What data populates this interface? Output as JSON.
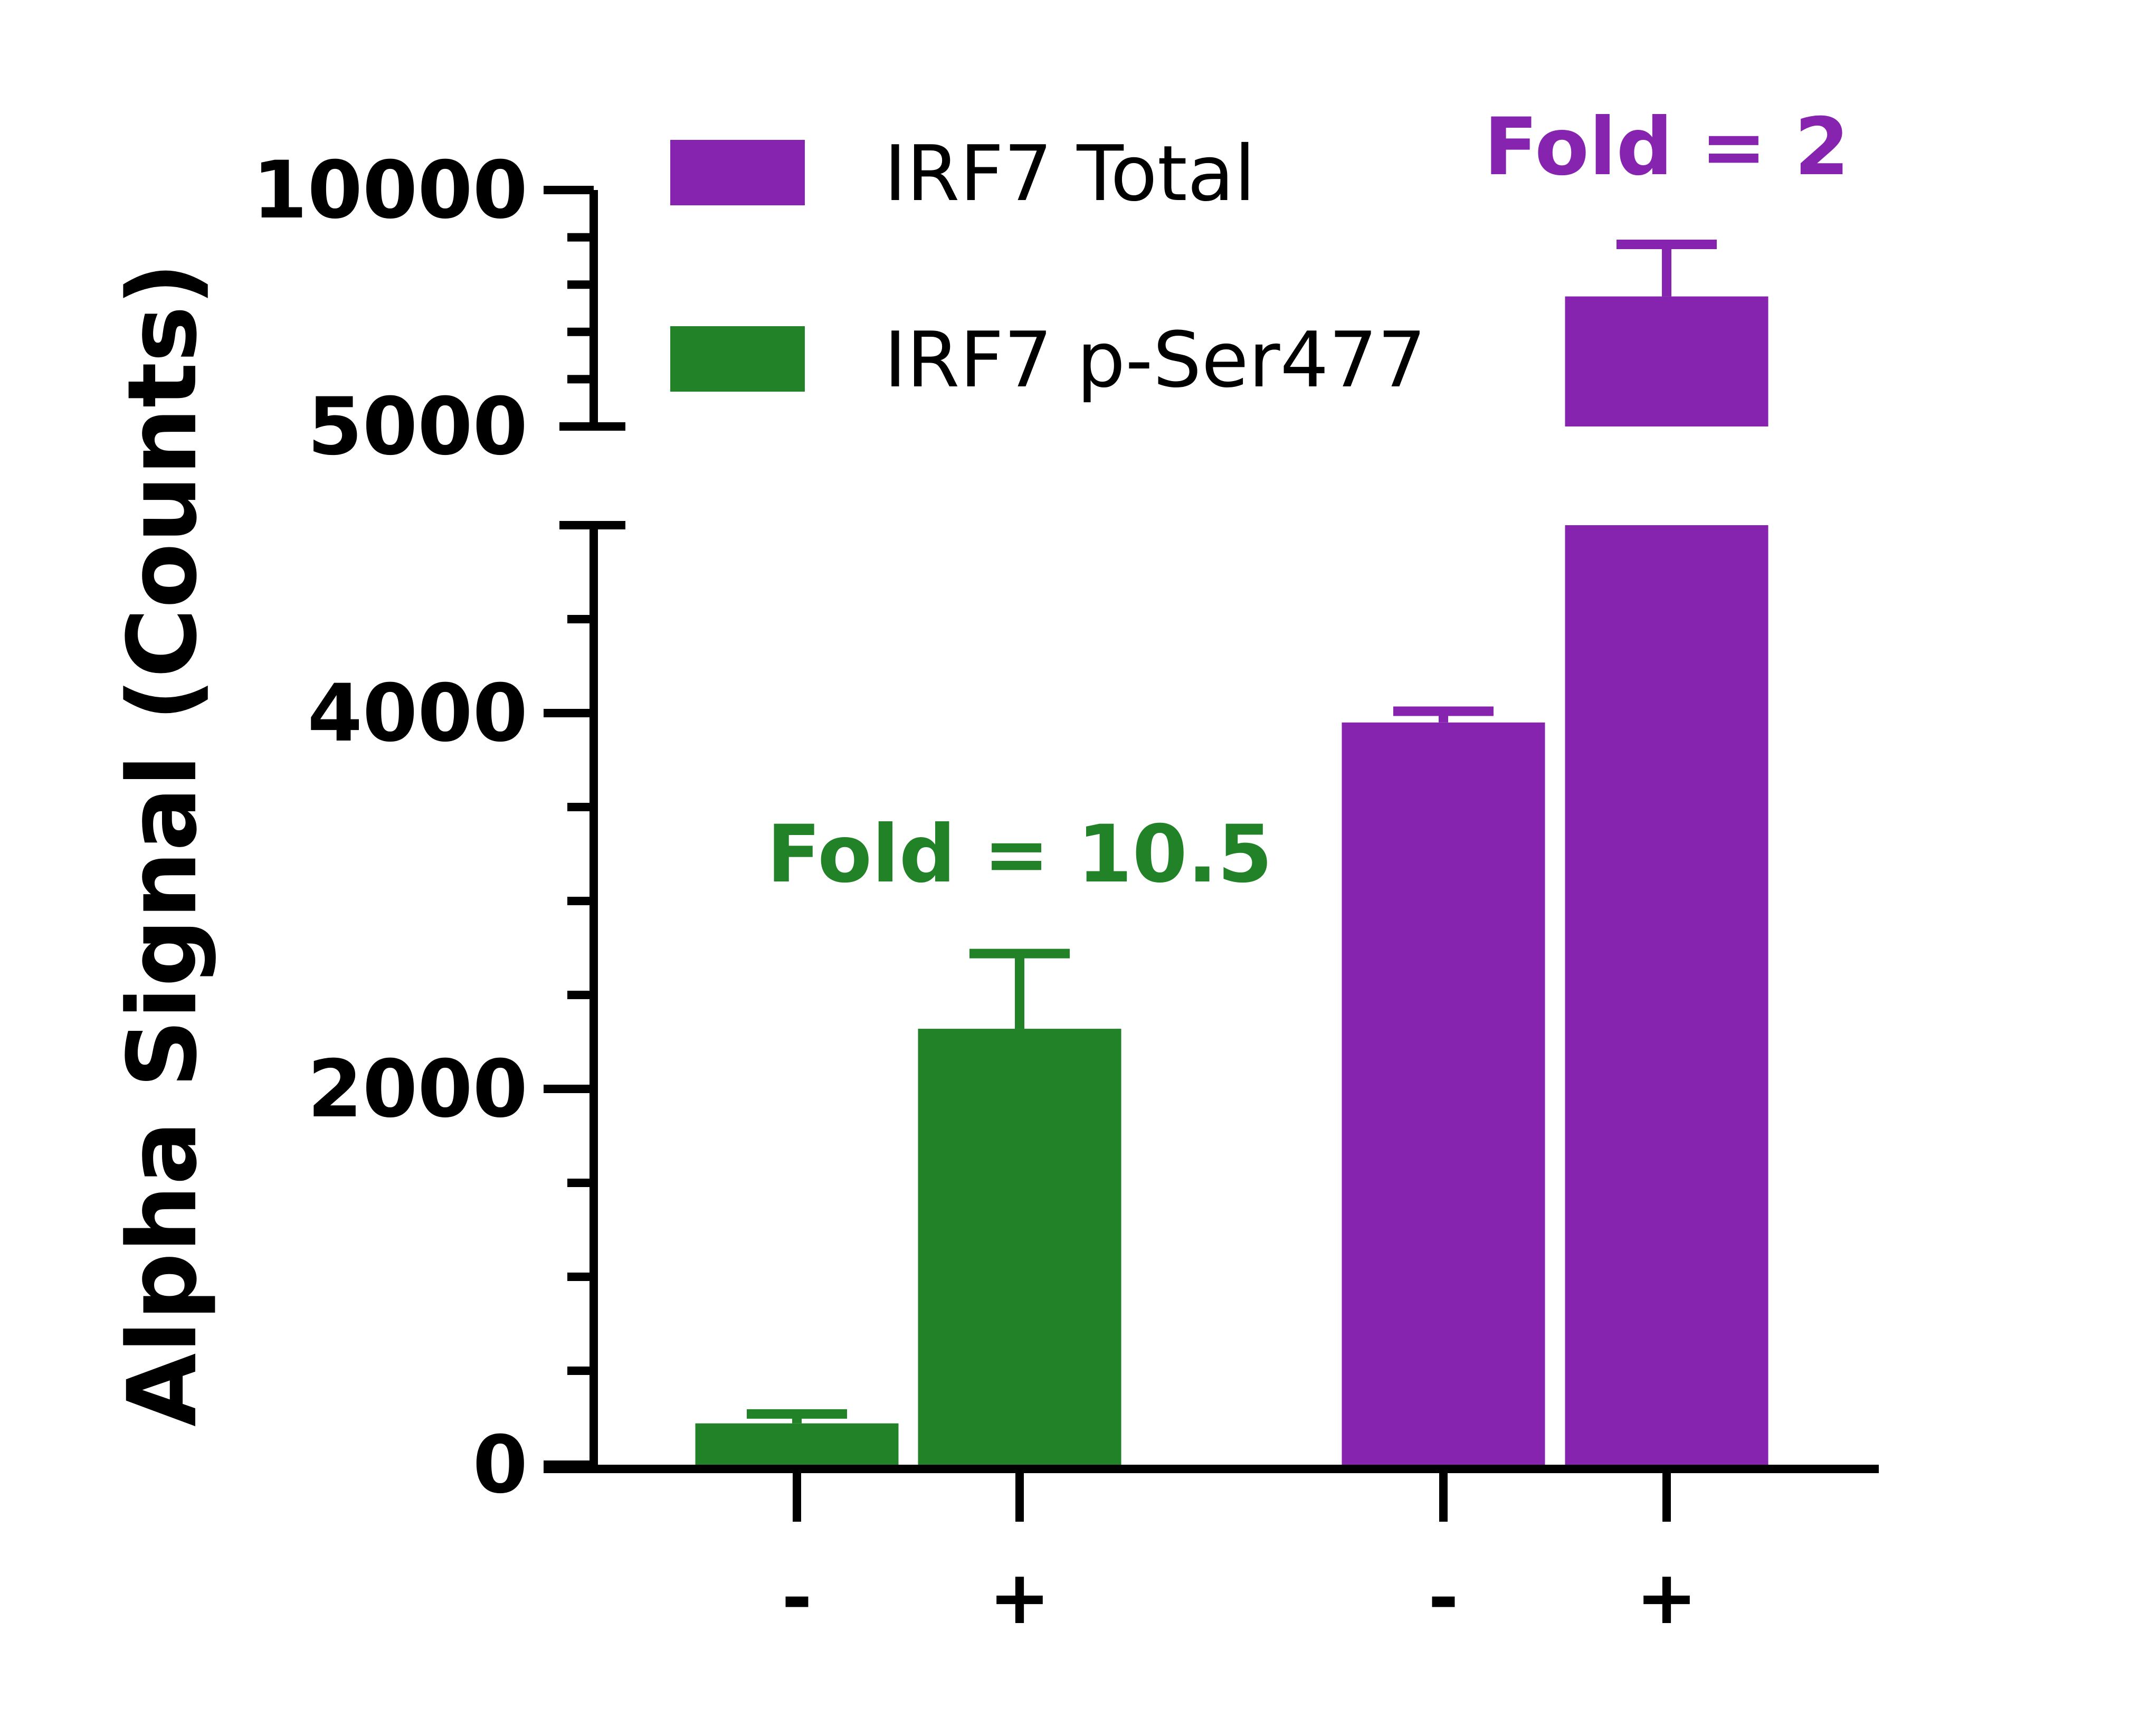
{
  "chart_data": {
    "type": "bar",
    "title": "",
    "ylabel": "Alpha Signal (Counts)",
    "xlabel": "",
    "y_axis": {
      "broken": true,
      "lower_range": [
        0,
        5000
      ],
      "upper_range": [
        5000,
        10000
      ],
      "lower_ticks": [
        "0",
        "2000",
        "4000"
      ],
      "upper_ticks": [
        "5000",
        "10000"
      ]
    },
    "categories": [
      "-",
      "+",
      "-",
      "+"
    ],
    "series": [
      {
        "name": "IRF7 p-Ser477",
        "color": "#228228",
        "bars": [
          {
            "category": "-",
            "value": 220,
            "error": 50
          },
          {
            "category": "+",
            "value": 2320,
            "error": 400
          }
        ],
        "annotation": "Fold = 10.5"
      },
      {
        "name": "IRF7 Total",
        "color": "#8623AF",
        "bars": [
          {
            "category": "-",
            "value": 3950,
            "error": 60
          },
          {
            "category": "+",
            "value": 7750,
            "error": 1100
          }
        ],
        "annotation": "Fold = 2"
      }
    ],
    "legend": {
      "placement": "top",
      "entries": [
        {
          "label": "IRF7 Total",
          "color": "#8623AF"
        },
        {
          "label": "IRF7 p-Ser477",
          "color": "#228228"
        }
      ]
    },
    "grid": false
  }
}
